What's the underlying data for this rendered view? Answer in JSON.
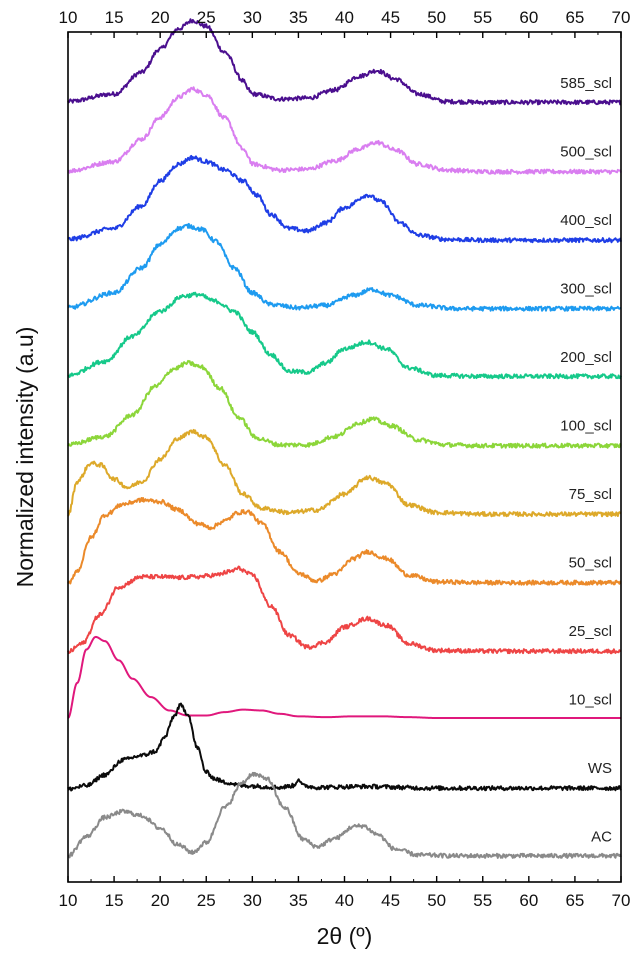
{
  "chart_data": {
    "type": "line",
    "xlabel": "2θ (º)",
    "ylabel": "Normalized intensity (a.u)",
    "xlim": [
      10,
      70
    ],
    "x_ticks": [
      "10",
      "15",
      "20",
      "25",
      "30",
      "35",
      "40",
      "45",
      "50",
      "55",
      "60",
      "65",
      "70"
    ],
    "stacked_offset": true,
    "y_ticks_shown": false,
    "grid": false,
    "series": [
      {
        "name": "585_scl",
        "color": "#4b0f8f",
        "points": [
          [
            10,
            0.03
          ],
          [
            15,
            0.12
          ],
          [
            18,
            0.38
          ],
          [
            20,
            0.66
          ],
          [
            22,
            0.9
          ],
          [
            23.5,
            1.0
          ],
          [
            25,
            0.93
          ],
          [
            27,
            0.62
          ],
          [
            29,
            0.28
          ],
          [
            29.5,
            0.18
          ],
          [
            30,
            0.12
          ],
          [
            33,
            0.06
          ],
          [
            36,
            0.07
          ],
          [
            39,
            0.17
          ],
          [
            41.5,
            0.33
          ],
          [
            43.5,
            0.4
          ],
          [
            45.5,
            0.3
          ],
          [
            48,
            0.12
          ],
          [
            51,
            0.03
          ],
          [
            55,
            0.02
          ],
          [
            60,
            0.02
          ],
          [
            70,
            0.02
          ]
        ]
      },
      {
        "name": "500_scl",
        "color": "#d97ef0",
        "points": [
          [
            10,
            0.02
          ],
          [
            15,
            0.13
          ],
          [
            18,
            0.4
          ],
          [
            20,
            0.66
          ],
          [
            22,
            0.9
          ],
          [
            23.5,
            1.0
          ],
          [
            25,
            0.93
          ],
          [
            27,
            0.65
          ],
          [
            29,
            0.28
          ],
          [
            29.5,
            0.2
          ],
          [
            30,
            0.1
          ],
          [
            33,
            0.03
          ],
          [
            36,
            0.04
          ],
          [
            39,
            0.14
          ],
          [
            41.5,
            0.28
          ],
          [
            43.5,
            0.36
          ],
          [
            45.5,
            0.27
          ],
          [
            48,
            0.1
          ],
          [
            51,
            0.03
          ],
          [
            55,
            0.01
          ],
          [
            60,
            0.01
          ],
          [
            70,
            0.01
          ]
        ]
      },
      {
        "name": "400_scl",
        "color": "#1f3ee6",
        "points": [
          [
            10,
            0.02
          ],
          [
            15,
            0.15
          ],
          [
            18,
            0.42
          ],
          [
            20,
            0.72
          ],
          [
            22,
            0.92
          ],
          [
            23.5,
            1.0
          ],
          [
            25,
            0.95
          ],
          [
            27,
            0.85
          ],
          [
            29,
            0.72
          ],
          [
            30.5,
            0.55
          ],
          [
            32,
            0.32
          ],
          [
            34,
            0.15
          ],
          [
            36,
            0.12
          ],
          [
            38,
            0.22
          ],
          [
            40,
            0.4
          ],
          [
            42.5,
            0.55
          ],
          [
            44,
            0.47
          ],
          [
            46,
            0.22
          ],
          [
            48,
            0.07
          ],
          [
            51,
            0.02
          ],
          [
            55,
            0.01
          ],
          [
            70,
            0.01
          ]
        ]
      },
      {
        "name": "300_scl",
        "color": "#1e9bf0",
        "points": [
          [
            10,
            0.02
          ],
          [
            15,
            0.2
          ],
          [
            18,
            0.5
          ],
          [
            20,
            0.78
          ],
          [
            22,
            0.97
          ],
          [
            23,
            1.0
          ],
          [
            24.5,
            0.96
          ],
          [
            26,
            0.82
          ],
          [
            28,
            0.5
          ],
          [
            30,
            0.2
          ],
          [
            32,
            0.06
          ],
          [
            35,
            0.02
          ],
          [
            38,
            0.05
          ],
          [
            41,
            0.17
          ],
          [
            43,
            0.24
          ],
          [
            45,
            0.17
          ],
          [
            48,
            0.05
          ],
          [
            52,
            0.01
          ],
          [
            60,
            0.01
          ],
          [
            70,
            0.01
          ]
        ]
      },
      {
        "name": "200_scl",
        "color": "#16c98a",
        "points": [
          [
            10,
            0.03
          ],
          [
            14,
            0.2
          ],
          [
            17,
            0.5
          ],
          [
            20,
            0.8
          ],
          [
            22.5,
            0.98
          ],
          [
            24,
            1.0
          ],
          [
            26,
            0.92
          ],
          [
            28,
            0.8
          ],
          [
            30,
            0.55
          ],
          [
            32,
            0.28
          ],
          [
            34,
            0.08
          ],
          [
            36,
            0.07
          ],
          [
            38,
            0.18
          ],
          [
            40,
            0.35
          ],
          [
            42.5,
            0.43
          ],
          [
            44.5,
            0.35
          ],
          [
            47,
            0.12
          ],
          [
            50,
            0.03
          ],
          [
            55,
            0.02
          ],
          [
            70,
            0.02
          ]
        ]
      },
      {
        "name": "100_scl",
        "color": "#8cd63a",
        "points": [
          [
            10,
            0.02
          ],
          [
            14,
            0.12
          ],
          [
            17,
            0.38
          ],
          [
            19.5,
            0.72
          ],
          [
            21.5,
            0.93
          ],
          [
            23,
            1.0
          ],
          [
            24.5,
            0.95
          ],
          [
            26.5,
            0.7
          ],
          [
            28.5,
            0.35
          ],
          [
            30.5,
            0.1
          ],
          [
            33,
            0.02
          ],
          [
            36,
            0.02
          ],
          [
            39,
            0.12
          ],
          [
            41.5,
            0.28
          ],
          [
            43,
            0.33
          ],
          [
            45,
            0.25
          ],
          [
            48,
            0.08
          ],
          [
            51,
            0.02
          ],
          [
            55,
            0.01
          ],
          [
            70,
            0.01
          ]
        ]
      },
      {
        "name": "75_scl",
        "color": "#dda92a",
        "points": [
          [
            10,
            0.0
          ],
          [
            11,
            0.4
          ],
          [
            12.5,
            0.62
          ],
          [
            13.5,
            0.6
          ],
          [
            15,
            0.43
          ],
          [
            16.5,
            0.33
          ],
          [
            18,
            0.4
          ],
          [
            20,
            0.67
          ],
          [
            22,
            0.92
          ],
          [
            23.5,
            1.0
          ],
          [
            25,
            0.93
          ],
          [
            27,
            0.6
          ],
          [
            29,
            0.25
          ],
          [
            31,
            0.08
          ],
          [
            34,
            0.03
          ],
          [
            37,
            0.06
          ],
          [
            40,
            0.25
          ],
          [
            42.5,
            0.45
          ],
          [
            44.5,
            0.38
          ],
          [
            47,
            0.12
          ],
          [
            50,
            0.03
          ],
          [
            55,
            0.01
          ],
          [
            70,
            0.01
          ]
        ]
      },
      {
        "name": "50_scl",
        "color": "#eb8a2a",
        "points": [
          [
            10,
            0.0
          ],
          [
            11,
            0.15
          ],
          [
            12.5,
            0.55
          ],
          [
            14,
            0.82
          ],
          [
            16,
            0.95
          ],
          [
            18,
            1.0
          ],
          [
            20,
            0.98
          ],
          [
            22,
            0.88
          ],
          [
            24,
            0.72
          ],
          [
            25.5,
            0.67
          ],
          [
            27,
            0.75
          ],
          [
            28.5,
            0.85
          ],
          [
            29.5,
            0.86
          ],
          [
            31,
            0.72
          ],
          [
            33,
            0.38
          ],
          [
            35,
            0.12
          ],
          [
            37,
            0.03
          ],
          [
            39,
            0.12
          ],
          [
            41,
            0.3
          ],
          [
            42.5,
            0.38
          ],
          [
            44.5,
            0.3
          ],
          [
            47,
            0.1
          ],
          [
            50,
            0.02
          ],
          [
            55,
            0.01
          ],
          [
            70,
            0.01
          ]
        ]
      },
      {
        "name": "25_scl",
        "color": "#ee4545",
        "points": [
          [
            10,
            0.0
          ],
          [
            11.5,
            0.1
          ],
          [
            13.5,
            0.45
          ],
          [
            15.5,
            0.78
          ],
          [
            18,
            0.9
          ],
          [
            20,
            0.9
          ],
          [
            22,
            0.89
          ],
          [
            24,
            0.9
          ],
          [
            26,
            0.92
          ],
          [
            27.5,
            0.96
          ],
          [
            28.5,
            1.0
          ],
          [
            30,
            0.92
          ],
          [
            32,
            0.55
          ],
          [
            34,
            0.2
          ],
          [
            36,
            0.06
          ],
          [
            38,
            0.12
          ],
          [
            40,
            0.3
          ],
          [
            42.5,
            0.4
          ],
          [
            44.5,
            0.32
          ],
          [
            47,
            0.1
          ],
          [
            50,
            0.02
          ],
          [
            55,
            0.01
          ],
          [
            70,
            0.01
          ]
        ]
      },
      {
        "name": "10_scl",
        "color": "#e0187c",
        "points": [
          [
            10,
            0.03
          ],
          [
            11,
            0.45
          ],
          [
            12,
            0.85
          ],
          [
            13,
            1.0
          ],
          [
            14,
            0.95
          ],
          [
            15.5,
            0.72
          ],
          [
            17,
            0.5
          ],
          [
            19,
            0.28
          ],
          [
            21,
            0.12
          ],
          [
            23,
            0.06
          ],
          [
            25,
            0.06
          ],
          [
            27,
            0.1
          ],
          [
            29,
            0.13
          ],
          [
            31,
            0.12
          ],
          [
            33,
            0.08
          ],
          [
            35,
            0.05
          ],
          [
            38,
            0.04
          ],
          [
            41,
            0.05
          ],
          [
            44,
            0.05
          ],
          [
            47,
            0.04
          ],
          [
            50,
            0.03
          ],
          [
            55,
            0.03
          ],
          [
            60,
            0.03
          ],
          [
            65,
            0.03
          ],
          [
            70,
            0.03
          ]
        ]
      },
      {
        "name": "WS",
        "color": "#0b0b0b",
        "points": [
          [
            10,
            0.0
          ],
          [
            12,
            0.04
          ],
          [
            14,
            0.17
          ],
          [
            16,
            0.35
          ],
          [
            18,
            0.4
          ],
          [
            19.5,
            0.45
          ],
          [
            20.5,
            0.62
          ],
          [
            21.5,
            0.87
          ],
          [
            22.2,
            1.0
          ],
          [
            23,
            0.9
          ],
          [
            24,
            0.5
          ],
          [
            25,
            0.2
          ],
          [
            26,
            0.12
          ],
          [
            27,
            0.08
          ],
          [
            29,
            0.04
          ],
          [
            33,
            0.02
          ],
          [
            34.5,
            0.04
          ],
          [
            35,
            0.12
          ],
          [
            35.5,
            0.04
          ],
          [
            37,
            0.02
          ],
          [
            42,
            0.03
          ],
          [
            50,
            0.01
          ],
          [
            60,
            0.01
          ],
          [
            70,
            0.01
          ]
        ]
      },
      {
        "name": "AC",
        "color": "#8a8a8a",
        "points": [
          [
            10,
            0.02
          ],
          [
            12,
            0.25
          ],
          [
            14,
            0.48
          ],
          [
            16,
            0.55
          ],
          [
            18,
            0.5
          ],
          [
            20,
            0.35
          ],
          [
            22,
            0.15
          ],
          [
            23.5,
            0.06
          ],
          [
            25,
            0.18
          ],
          [
            27,
            0.6
          ],
          [
            29,
            0.9
          ],
          [
            30,
            1.0
          ],
          [
            31.5,
            0.95
          ],
          [
            33.5,
            0.6
          ],
          [
            35.5,
            0.22
          ],
          [
            37,
            0.13
          ],
          [
            39,
            0.23
          ],
          [
            41,
            0.37
          ],
          [
            42,
            0.38
          ],
          [
            43.5,
            0.28
          ],
          [
            45.5,
            0.1
          ],
          [
            48,
            0.03
          ],
          [
            52,
            0.02
          ],
          [
            60,
            0.02
          ],
          [
            70,
            0.02
          ]
        ]
      }
    ]
  }
}
